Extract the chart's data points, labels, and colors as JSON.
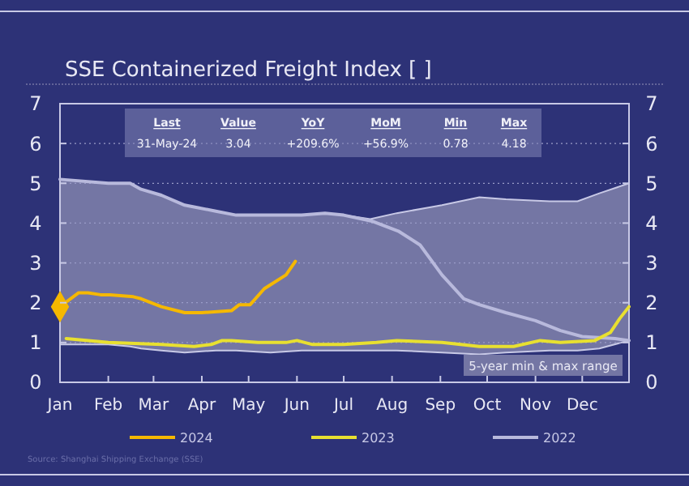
{
  "chart_data": {
    "type": "line",
    "title": "SSE Containerized Freight Index [ ]",
    "xlim": [
      "--01-01",
      "--12-31"
    ],
    "xticks": [
      {
        "value": "--01-01",
        "label": "Jan"
      },
      {
        "value": "--02-01",
        "label": "Feb"
      },
      {
        "value": "--03-01",
        "label": "Mar"
      },
      {
        "value": "--04-01",
        "label": "Apr"
      },
      {
        "value": "--05-01",
        "label": "May"
      },
      {
        "value": "--06-01",
        "label": "Jun"
      },
      {
        "value": "--07-01",
        "label": "Jul"
      },
      {
        "value": "--08-01",
        "label": "Aug"
      },
      {
        "value": "--09-01",
        "label": "Sep"
      },
      {
        "value": "--10-01",
        "label": "Oct"
      },
      {
        "value": "--11-01",
        "label": "Nov"
      },
      {
        "value": "--12-01",
        "label": "Dec"
      }
    ],
    "ylim": [
      0,
      7
    ],
    "yticks": [
      0,
      1,
      2,
      3,
      4,
      5,
      6,
      7
    ],
    "y2lim": [
      0,
      7
    ],
    "y2ticks": [
      0,
      1,
      2,
      3,
      4,
      5,
      6,
      7
    ],
    "grid": "y",
    "legend": "bottom",
    "series": [
      {
        "name": "5-year min & max range",
        "type": "area",
        "color": "#7476a4",
        "x": [
          "--01-01",
          "--02-01",
          "--02-15",
          "--02-22",
          "--03-06",
          "--03-21",
          "--04-10",
          "--04-23",
          "--05-15",
          "--06-04",
          "--06-19",
          "--07-01",
          "--07-18",
          "--08-04",
          "--09-02",
          "--09-26",
          "--10-13",
          "--11-10",
          "--11-28",
          "--12-12",
          "--12-31"
        ],
        "values": [
          5.1,
          5.0,
          5.0,
          4.85,
          4.7,
          4.45,
          4.3,
          4.2,
          4.2,
          4.2,
          4.25,
          4.2,
          4.1,
          4.25,
          4.45,
          4.65,
          4.6,
          4.55,
          4.55,
          4.75,
          5.0
        ]
      },
      {
        "type": "area",
        "color": "#2d3277",
        "x": [
          "--01-01",
          "--02-01",
          "--02-15",
          "--02-22",
          "--03-06",
          "--03-21",
          "--04-10",
          "--04-23",
          "--05-15",
          "--06-04",
          "--06-19",
          "--07-01",
          "--07-18",
          "--08-04",
          "--09-02",
          "--09-26",
          "--10-13",
          "--11-10",
          "--11-28",
          "--12-12",
          "--12-31"
        ],
        "values": [
          0.95,
          0.95,
          0.9,
          0.85,
          0.8,
          0.75,
          0.8,
          0.8,
          0.75,
          0.8,
          0.8,
          0.8,
          0.8,
          0.8,
          0.75,
          0.7,
          0.75,
          0.8,
          0.8,
          0.85,
          1.05
        ]
      },
      {
        "name": "2022",
        "color": "#b8b9dc",
        "x": [
          "--01-01",
          "--02-01",
          "--02-15",
          "--02-22",
          "--03-06",
          "--03-21",
          "--04-10",
          "--04-23",
          "--05-15",
          "--06-04",
          "--06-19",
          "--07-01",
          "--07-19",
          "--08-05",
          "--08-19",
          "--09-02",
          "--09-16",
          "--09-26",
          "--10-13",
          "--11-01",
          "--11-17",
          "--12-01",
          "--12-22",
          "--12-31"
        ],
        "values": [
          5.1,
          5.0,
          5.0,
          4.85,
          4.7,
          4.45,
          4.3,
          4.2,
          4.2,
          4.2,
          4.25,
          4.2,
          4.05,
          3.8,
          3.45,
          2.7,
          2.1,
          1.95,
          1.75,
          1.55,
          1.3,
          1.15,
          1.1,
          1.05
        ]
      },
      {
        "name": "2023",
        "color": "#e8e030",
        "x": [
          "--01-05",
          "--02-01",
          "--03-06",
          "--03-27",
          "--04-07",
          "--04-14",
          "--04-20",
          "--05-07",
          "--05-25",
          "--06-01",
          "--06-11",
          "--07-01",
          "--07-22",
          "--08-04",
          "--09-02",
          "--09-26",
          "--10-18",
          "--11-04",
          "--11-17",
          "--12-09",
          "--12-19",
          "--12-25",
          "--12-31"
        ],
        "values": [
          1.1,
          1.0,
          0.95,
          0.9,
          0.95,
          1.05,
          1.05,
          1.0,
          1.0,
          1.05,
          0.95,
          0.95,
          1.0,
          1.05,
          1.0,
          0.9,
          0.9,
          1.05,
          1.0,
          1.05,
          1.25,
          1.6,
          1.9
        ]
      },
      {
        "name": "2024",
        "color": "#f5b800",
        "x": [
          "--01-01",
          "--01-13",
          "--01-19",
          "--01-27",
          "--02-02",
          "--02-17",
          "--02-22",
          "--03-06",
          "--03-21",
          "--04-01",
          "--04-20",
          "--04-25",
          "--05-02",
          "--05-11",
          "--05-25",
          "--05-31"
        ],
        "values": [
          1.9,
          2.25,
          2.25,
          2.2,
          2.2,
          2.15,
          2.1,
          1.9,
          1.75,
          1.75,
          1.8,
          1.95,
          1.95,
          2.35,
          2.7,
          3.04
        ]
      },
      {
        "type": "scatter",
        "marker": "diamond",
        "color": "#f5b800",
        "x": [
          "--01-01"
        ],
        "values": [
          1.9
        ]
      }
    ],
    "annotations": [
      "Last",
      "Value",
      "YoY",
      "MoM",
      "Min",
      "Max",
      "31-May-24",
      "3.04",
      "+209.6%",
      "+56.9%",
      "0.78",
      "4.18",
      "Source: Shanghai Shipping Exchange (SSE)"
    ]
  }
}
